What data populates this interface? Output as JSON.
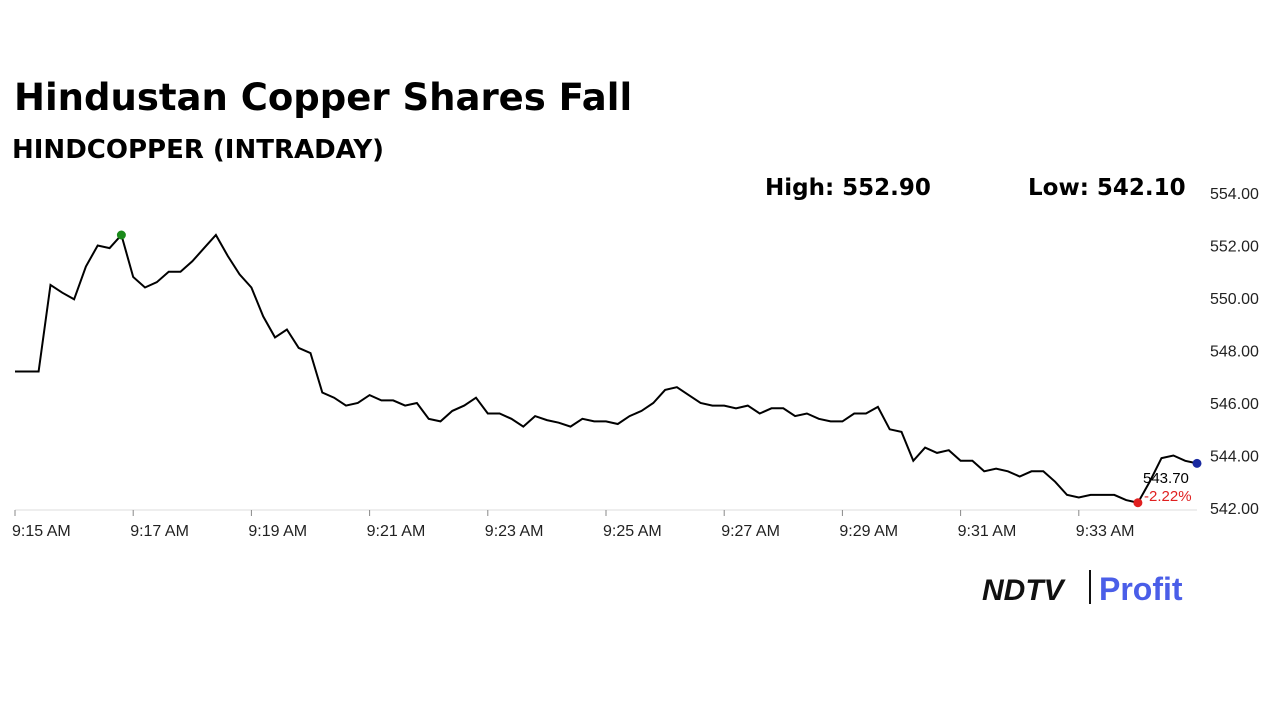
{
  "chart_data": {
    "type": "line",
    "title": "Hindustan Copper Shares Fall",
    "subtitle": "HINDCOPPER (INTRADAY)",
    "annotations": [
      "High: 552.90",
      "Low: 542.10",
      "543.70",
      "-2.22%"
    ],
    "brand": [
      "NDTV",
      "Profit"
    ],
    "categories": [
      "9:15 AM",
      null,
      null,
      null,
      null,
      null,
      null,
      null,
      null,
      null,
      "9:17 AM",
      null,
      null,
      null,
      null,
      null,
      null,
      null,
      null,
      null,
      "9:19 AM",
      null,
      null,
      null,
      null,
      null,
      null,
      null,
      null,
      null,
      "9:21 AM",
      null,
      null,
      null,
      null,
      null,
      null,
      null,
      null,
      null,
      "9:23 AM",
      null,
      null,
      null,
      null,
      null,
      null,
      null,
      null,
      null,
      "9:25 AM",
      null,
      null,
      null,
      null,
      null,
      null,
      null,
      null,
      null,
      "9:27 AM",
      null,
      null,
      null,
      null,
      null,
      null,
      null,
      null,
      null,
      "9:29 AM",
      null,
      null,
      null,
      null,
      null,
      null,
      null,
      null,
      null,
      "9:31 AM",
      null,
      null,
      null,
      null,
      null,
      null,
      null,
      null,
      null,
      "9:33 AM",
      null,
      null,
      null,
      null,
      null,
      null,
      null,
      null,
      null,
      null
    ],
    "series": [
      {
        "name": "HINDCOPPER",
        "color": "#000000",
        "values": [
          547.2,
          547.2,
          547.2,
          550.5,
          550.2,
          549.95,
          551.2,
          552.0,
          551.9,
          552.4,
          550.8,
          550.4,
          550.6,
          551.0,
          551.0,
          551.4,
          551.9,
          552.4,
          551.6,
          550.9,
          550.4,
          549.3,
          548.5,
          548.8,
          548.1,
          547.9,
          546.4,
          546.2,
          545.9,
          546.0,
          546.3,
          546.1,
          546.1,
          545.9,
          546.0,
          545.4,
          545.3,
          545.7,
          545.9,
          546.2,
          545.6,
          545.6,
          545.4,
          545.1,
          545.5,
          545.35,
          545.25,
          545.1,
          545.4,
          545.3,
          545.3,
          545.2,
          545.5,
          545.7,
          546.0,
          546.5,
          546.6,
          546.3,
          546.0,
          545.9,
          545.9,
          545.8,
          545.9,
          545.6,
          545.8,
          545.8,
          545.5,
          545.6,
          545.4,
          545.3,
          545.3,
          545.6,
          545.6,
          545.85,
          545.0,
          544.9,
          543.8,
          544.3,
          544.1,
          544.2,
          543.8,
          543.8,
          543.4,
          543.5,
          543.4,
          543.2,
          543.4,
          543.4,
          543.0,
          542.5,
          542.4,
          542.5,
          542.5,
          542.5,
          542.3,
          542.2,
          543.0,
          543.9,
          544.0,
          543.8,
          543.7
        ]
      }
    ],
    "markers": [
      {
        "index": 9,
        "color": "#1a8a1a"
      },
      {
        "index": 95,
        "color": "#e02020"
      },
      {
        "index": 100,
        "color": "#1a2aa0"
      }
    ],
    "ylim": [
      542,
      554
    ],
    "yticks": [
      {
        "value": 542,
        "label": "542.00"
      },
      {
        "value": 544,
        "label": "544.00"
      },
      {
        "value": 546,
        "label": "546.00"
      },
      {
        "value": 548,
        "label": "548.00"
      },
      {
        "value": 550,
        "label": "550.00"
      },
      {
        "value": 552,
        "label": "552.00"
      },
      {
        "value": 554,
        "label": "554.00"
      }
    ],
    "grid": false
  }
}
